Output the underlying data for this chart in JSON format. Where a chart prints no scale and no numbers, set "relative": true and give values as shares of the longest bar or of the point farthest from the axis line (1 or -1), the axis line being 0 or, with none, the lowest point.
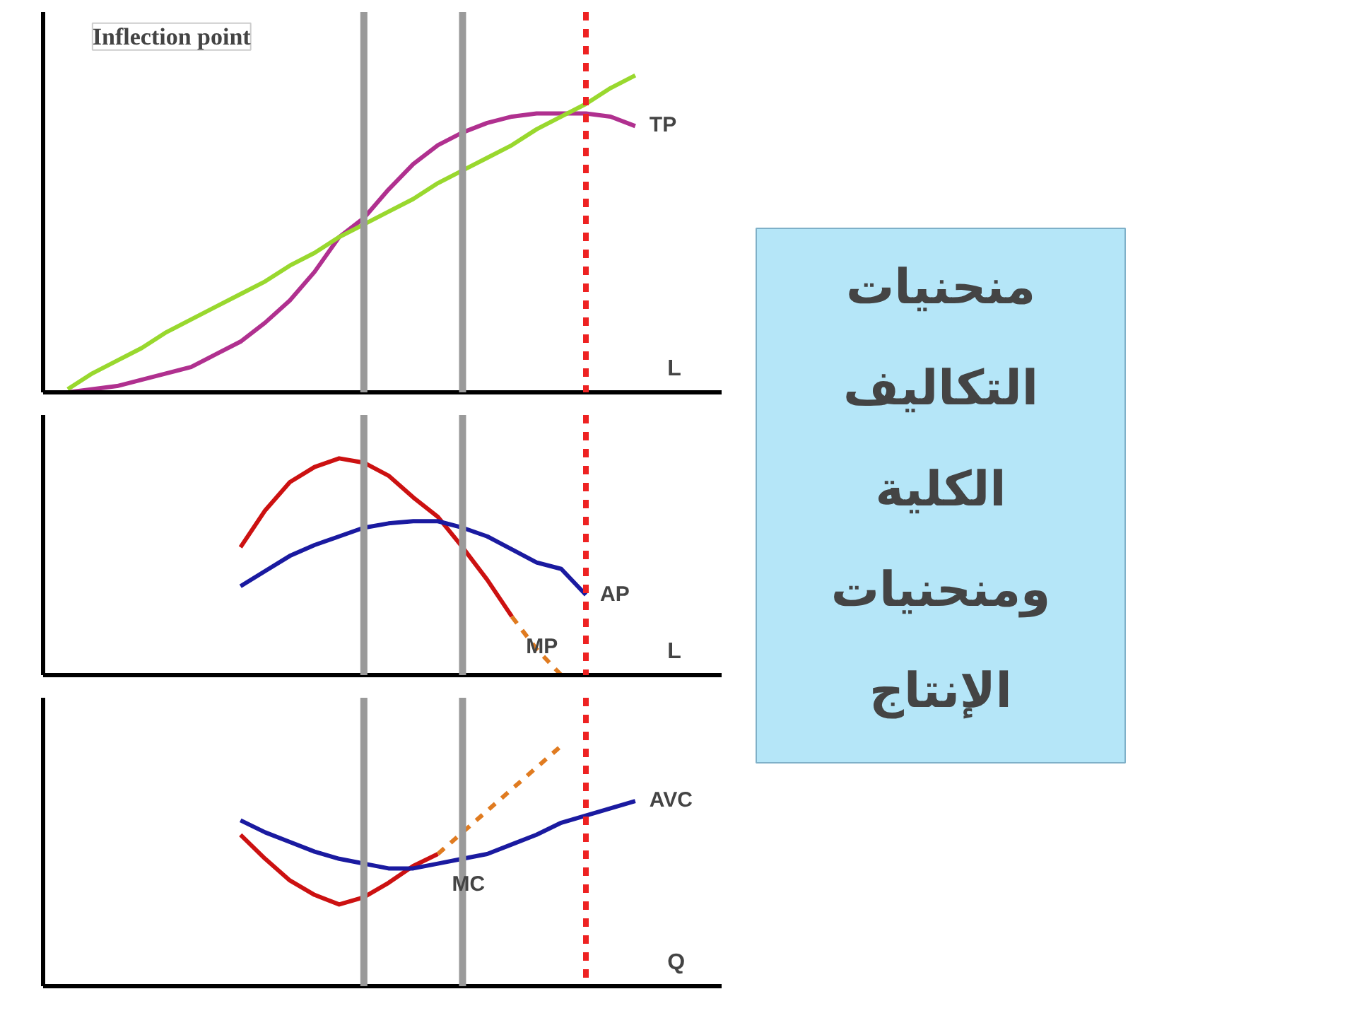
{
  "chart_data": [
    {
      "type": "line",
      "relative": true,
      "xlabel": "L",
      "annotations": [
        "Inflection point"
      ],
      "categories": [
        null,
        null,
        null,
        null,
        null,
        null,
        null,
        null,
        null,
        null,
        null,
        null,
        null,
        null,
        null,
        null,
        null,
        null,
        null,
        null,
        null,
        null,
        null,
        null
      ],
      "series": [
        {
          "name": "TP",
          "color": "#b0308f",
          "values": [
            0.0,
            0.01,
            0.02,
            0.04,
            0.06,
            0.08,
            0.12,
            0.16,
            0.22,
            0.29,
            0.38,
            0.49,
            0.55,
            0.64,
            0.72,
            0.78,
            0.82,
            0.85,
            0.87,
            0.88,
            0.88,
            0.88,
            0.87,
            0.84
          ]
        },
        {
          "color": "#99d82e",
          "values": [
            0.01,
            0.06,
            0.1,
            0.14,
            0.19,
            0.23,
            0.27,
            0.31,
            0.35,
            0.4,
            0.44,
            0.49,
            0.53,
            0.57,
            0.61,
            0.66,
            0.7,
            0.74,
            0.78,
            0.83,
            0.87,
            0.91,
            0.96,
            1.0
          ]
        }
      ]
    },
    {
      "type": "line",
      "relative": true,
      "xlabel": "L",
      "categories": [
        null,
        null,
        null,
        null,
        null,
        null,
        null,
        null,
        null,
        null,
        null,
        null,
        null,
        null,
        null,
        null,
        null,
        null,
        null,
        null,
        null,
        null,
        null,
        null
      ],
      "series": [
        {
          "name": "MP",
          "color": "#cc1111",
          "values": [
            null,
            null,
            null,
            null,
            null,
            null,
            null,
            0.59,
            0.76,
            0.89,
            0.96,
            1.0,
            0.98,
            0.92,
            0.82,
            0.73,
            0.59,
            0.44,
            0.27,
            null,
            null,
            null,
            null,
            null
          ]
        },
        {
          "color": "#e07b20",
          "line_style": "dashed",
          "values": [
            null,
            null,
            null,
            null,
            null,
            null,
            null,
            null,
            null,
            null,
            null,
            null,
            null,
            null,
            null,
            null,
            null,
            null,
            0.27,
            0.12,
            0.0,
            null,
            null,
            null
          ]
        },
        {
          "name": "AP",
          "color": "#1a1aa0",
          "values": [
            null,
            null,
            null,
            null,
            null,
            null,
            null,
            0.41,
            0.48,
            0.55,
            0.6,
            0.64,
            0.68,
            0.7,
            0.71,
            0.71,
            0.68,
            0.64,
            0.58,
            0.52,
            0.49,
            0.37,
            null,
            null
          ]
        }
      ]
    },
    {
      "type": "line",
      "relative": true,
      "xlabel": "Q",
      "categories": [
        null,
        null,
        null,
        null,
        null,
        null,
        null,
        null,
        null,
        null,
        null,
        null,
        null,
        null,
        null,
        null,
        null,
        null,
        null,
        null,
        null,
        null,
        null,
        null
      ],
      "series": [
        {
          "name": "MC",
          "color": "#cc1111",
          "values": [
            null,
            null,
            null,
            null,
            null,
            null,
            null,
            0.63,
            0.53,
            0.44,
            0.38,
            0.34,
            0.37,
            0.43,
            0.5,
            0.55,
            null,
            null,
            null,
            null,
            null,
            null,
            null,
            null
          ]
        },
        {
          "color": "#e07b20",
          "line_style": "dashed",
          "values": [
            null,
            null,
            null,
            null,
            null,
            null,
            null,
            null,
            null,
            null,
            null,
            null,
            null,
            null,
            null,
            0.55,
            0.64,
            0.73,
            0.82,
            0.91,
            1.0,
            null,
            null,
            null
          ]
        },
        {
          "name": "AVC",
          "color": "#1a1aa0",
          "values": [
            null,
            null,
            null,
            null,
            null,
            null,
            null,
            0.69,
            0.64,
            0.6,
            0.56,
            0.53,
            0.51,
            0.49,
            0.49,
            0.51,
            0.53,
            0.55,
            0.59,
            0.63,
            0.68,
            0.71,
            0.74,
            0.77
          ]
        }
      ]
    },
    {
      "type": "other",
      "annotations": [
        "منحنيات",
        "التكاليف",
        "الكلية",
        "ومنحنيات",
        "الإنتاج"
      ]
    }
  ]
}
